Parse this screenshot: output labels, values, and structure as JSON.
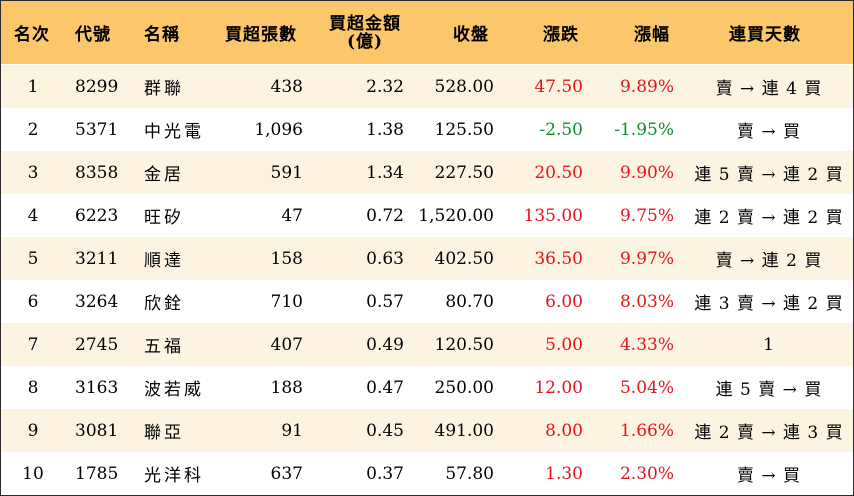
{
  "headers": {
    "rank": "名次",
    "code": "代號",
    "name": "名稱",
    "shares": "買超張數",
    "amount_line1": "買超金額",
    "amount_line2": "(億)",
    "close": "收盤",
    "change": "漲跌",
    "pct": "漲幅",
    "days": "連買天數"
  },
  "colors": {
    "header_bg": "#fbc76a",
    "alt_row_bg": "#fdf3e1",
    "up": "#e3141d",
    "down": "#138b2f"
  },
  "rows": [
    {
      "rank": "1",
      "code": "8299",
      "name": "群聯",
      "shares": "438",
      "amount": "2.32",
      "close": "528.00",
      "change": "47.50",
      "pct": "9.89%",
      "days": "賣 → 連 4 買",
      "dir": "up"
    },
    {
      "rank": "2",
      "code": "5371",
      "name": "中光電",
      "shares": "1,096",
      "amount": "1.38",
      "close": "125.50",
      "change": "-2.50",
      "pct": "-1.95%",
      "days": "賣 → 買",
      "dir": "down"
    },
    {
      "rank": "3",
      "code": "8358",
      "name": "金居",
      "shares": "591",
      "amount": "1.34",
      "close": "227.50",
      "change": "20.50",
      "pct": "9.90%",
      "days": "連 5 賣 → 連 2 買",
      "dir": "up"
    },
    {
      "rank": "4",
      "code": "6223",
      "name": "旺矽",
      "shares": "47",
      "amount": "0.72",
      "close": "1,520.00",
      "change": "135.00",
      "pct": "9.75%",
      "days": "連 2 賣 → 連 2 買",
      "dir": "up"
    },
    {
      "rank": "5",
      "code": "3211",
      "name": "順達",
      "shares": "158",
      "amount": "0.63",
      "close": "402.50",
      "change": "36.50",
      "pct": "9.97%",
      "days": "賣 → 連 2 買",
      "dir": "up"
    },
    {
      "rank": "6",
      "code": "3264",
      "name": "欣銓",
      "shares": "710",
      "amount": "0.57",
      "close": "80.70",
      "change": "6.00",
      "pct": "8.03%",
      "days": "連 3 賣 → 連 2 買",
      "dir": "up"
    },
    {
      "rank": "7",
      "code": "2745",
      "name": "五福",
      "shares": "407",
      "amount": "0.49",
      "close": "120.50",
      "change": "5.00",
      "pct": "4.33%",
      "days": "1",
      "dir": "up"
    },
    {
      "rank": "8",
      "code": "3163",
      "name": "波若威",
      "shares": "188",
      "amount": "0.47",
      "close": "250.00",
      "change": "12.00",
      "pct": "5.04%",
      "days": "連 5 賣 → 買",
      "dir": "up"
    },
    {
      "rank": "9",
      "code": "3081",
      "name": "聯亞",
      "shares": "91",
      "amount": "0.45",
      "close": "491.00",
      "change": "8.00",
      "pct": "1.66%",
      "days": "連 2 賣 → 連 3 買",
      "dir": "up"
    },
    {
      "rank": "10",
      "code": "1785",
      "name": "光洋科",
      "shares": "637",
      "amount": "0.37",
      "close": "57.80",
      "change": "1.30",
      "pct": "2.30%",
      "days": "賣 → 買",
      "dir": "up"
    }
  ]
}
